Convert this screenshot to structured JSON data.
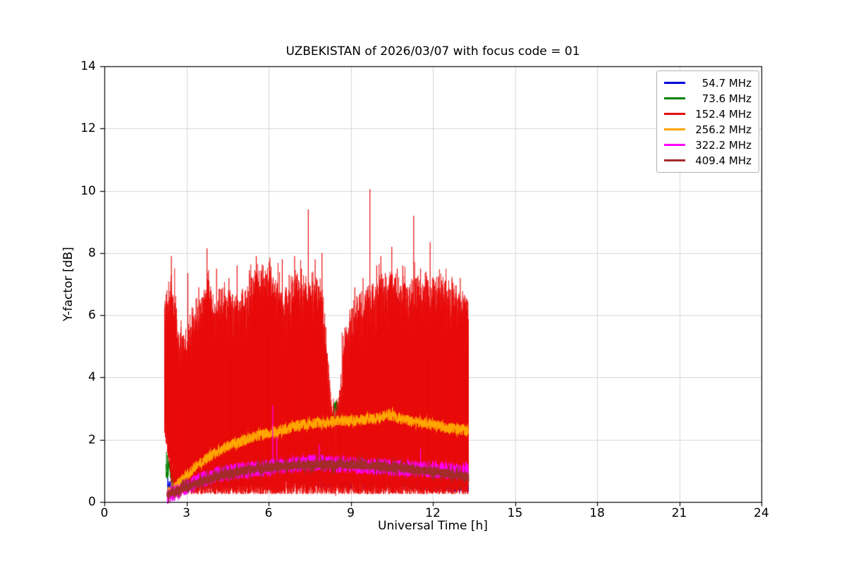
{
  "chart_data": {
    "type": "line",
    "title": "UZBEKISTAN of 2026/03/07 with focus code = 01",
    "xlabel": "Universal Time [h]",
    "ylabel": "Y-factor [dB]",
    "xlim": [
      0,
      24
    ],
    "ylim": [
      0,
      14
    ],
    "x_ticks": [
      0,
      3,
      6,
      9,
      12,
      15,
      18,
      21,
      24
    ],
    "y_ticks": [
      0,
      2,
      4,
      6,
      8,
      10,
      12,
      14
    ],
    "grid": true,
    "grid_color": "#d6d6d6",
    "legend_position": "upper right",
    "series": [
      {
        "name": "54.7 MHz",
        "color": "#0000dd",
        "render": "line",
        "x_start": 2.3,
        "x_end": 13.3,
        "width": 1.2,
        "noise": 0.3,
        "x_step": 0.008,
        "mean": [
          [
            2.3,
            0.5
          ],
          [
            3.0,
            0.6
          ],
          [
            4.0,
            0.7
          ],
          [
            5.0,
            0.75
          ],
          [
            6.0,
            0.8
          ],
          [
            6.5,
            0.85
          ],
          [
            7.0,
            0.85
          ],
          [
            8.0,
            0.75
          ],
          [
            9.0,
            0.7
          ],
          [
            10.0,
            0.7
          ],
          [
            11.0,
            0.68
          ],
          [
            12.0,
            0.65
          ],
          [
            13.3,
            0.6
          ]
        ]
      },
      {
        "name": "73.6 MHz",
        "color": "#008000",
        "render": "line",
        "x_start": 2.25,
        "x_end": 13.3,
        "width": 1.2,
        "noise": 0.3,
        "x_step": 0.008,
        "mean": [
          [
            2.25,
            1.0
          ],
          [
            2.35,
            1.1
          ],
          [
            2.5,
            0.8
          ],
          [
            3.0,
            0.7
          ],
          [
            4.0,
            0.75
          ],
          [
            5.0,
            0.8
          ],
          [
            6.0,
            0.85
          ],
          [
            7.0,
            0.9
          ],
          [
            8.0,
            0.95
          ],
          [
            8.3,
            2.6
          ],
          [
            8.45,
            3.15
          ],
          [
            8.6,
            2.9
          ],
          [
            8.75,
            1.2
          ],
          [
            9.0,
            0.9
          ],
          [
            10.0,
            0.8
          ],
          [
            11.0,
            0.75
          ],
          [
            12.0,
            0.7
          ],
          [
            13.3,
            0.7
          ]
        ],
        "spikes": [
          [
            2.27,
            1.6
          ],
          [
            2.31,
            1.5
          ],
          [
            2.35,
            1.3
          ]
        ]
      },
      {
        "name": "152.4 MHz",
        "color": "#e80c0c",
        "render": "fill",
        "x_start": 2.2,
        "x_end": 13.3,
        "spike_base": 0.6,
        "top": [
          [
            2.2,
            6.2
          ],
          [
            2.45,
            7.0
          ],
          [
            2.7,
            5.6
          ],
          [
            3.0,
            5.1
          ],
          [
            3.2,
            5.9
          ],
          [
            3.5,
            6.3
          ],
          [
            3.8,
            7.0
          ],
          [
            4.0,
            6.2
          ],
          [
            4.3,
            6.5
          ],
          [
            4.6,
            6.8
          ],
          [
            4.9,
            6.2
          ],
          [
            5.2,
            6.6
          ],
          [
            5.5,
            7.0
          ],
          [
            5.8,
            7.2
          ],
          [
            6.1,
            7.3
          ],
          [
            6.4,
            6.7
          ],
          [
            6.7,
            6.5
          ],
          [
            7.0,
            7.1
          ],
          [
            7.3,
            6.9
          ],
          [
            7.6,
            7.1
          ],
          [
            7.9,
            6.8
          ],
          [
            8.1,
            5.2
          ],
          [
            8.3,
            3.1
          ],
          [
            8.45,
            2.9
          ],
          [
            8.6,
            3.4
          ],
          [
            8.8,
            5.4
          ],
          [
            9.0,
            5.9
          ],
          [
            9.3,
            6.3
          ],
          [
            9.6,
            6.5
          ],
          [
            9.9,
            6.8
          ],
          [
            10.2,
            7.0
          ],
          [
            10.5,
            7.1
          ],
          [
            10.8,
            6.9
          ],
          [
            11.1,
            6.6
          ],
          [
            11.4,
            6.9
          ],
          [
            11.7,
            7.0
          ],
          [
            12.0,
            6.9
          ],
          [
            12.3,
            7.0
          ],
          [
            12.6,
            6.6
          ],
          [
            12.9,
            6.5
          ],
          [
            13.1,
            6.4
          ],
          [
            13.3,
            6.3
          ]
        ],
        "bottom": [
          [
            2.2,
            2.2
          ],
          [
            2.3,
            1.6
          ],
          [
            2.45,
            0.7
          ],
          [
            2.6,
            0.35
          ],
          [
            3.0,
            0.25
          ],
          [
            13.3,
            0.25
          ]
        ],
        "spikes": [
          [
            2.45,
            7.9
          ],
          [
            3.05,
            7.35
          ],
          [
            3.45,
            6.9
          ],
          [
            3.75,
            8.15
          ],
          [
            4.1,
            7.5
          ],
          [
            4.55,
            7.2
          ],
          [
            4.85,
            7.6
          ],
          [
            5.3,
            7.45
          ],
          [
            5.55,
            7.9
          ],
          [
            5.8,
            7.6
          ],
          [
            6.05,
            7.85
          ],
          [
            6.5,
            7.8
          ],
          [
            6.75,
            7.3
          ],
          [
            6.95,
            7.9
          ],
          [
            7.2,
            7.5
          ],
          [
            7.45,
            9.4
          ],
          [
            7.7,
            7.8
          ],
          [
            7.95,
            8.0
          ],
          [
            9.15,
            6.9
          ],
          [
            9.45,
            7.2
          ],
          [
            9.7,
            10.05
          ],
          [
            9.95,
            7.6
          ],
          [
            10.1,
            7.9
          ],
          [
            10.5,
            8.2
          ],
          [
            10.7,
            7.5
          ],
          [
            10.9,
            7.6
          ],
          [
            11.3,
            9.2
          ],
          [
            11.55,
            7.5
          ],
          [
            11.75,
            7.4
          ],
          [
            11.9,
            8.35
          ],
          [
            12.2,
            7.25
          ],
          [
            12.45,
            7.1
          ],
          [
            12.7,
            7.15
          ],
          [
            13.0,
            7.2
          ]
        ]
      },
      {
        "name": "256.2 MHz",
        "color": "#ffa500",
        "render": "line",
        "x_start": 2.3,
        "x_end": 13.3,
        "width": 1.3,
        "noise": 0.18,
        "x_step": 0.006,
        "mean": [
          [
            2.3,
            0.3
          ],
          [
            2.6,
            0.5
          ],
          [
            3.0,
            0.85
          ],
          [
            3.5,
            1.25
          ],
          [
            4.0,
            1.55
          ],
          [
            4.5,
            1.8
          ],
          [
            5.0,
            1.95
          ],
          [
            5.5,
            2.1
          ],
          [
            6.0,
            2.2
          ],
          [
            6.5,
            2.3
          ],
          [
            7.0,
            2.45
          ],
          [
            7.5,
            2.5
          ],
          [
            8.0,
            2.55
          ],
          [
            8.5,
            2.6
          ],
          [
            9.0,
            2.6
          ],
          [
            9.5,
            2.65
          ],
          [
            10.0,
            2.7
          ],
          [
            10.4,
            2.8
          ],
          [
            10.8,
            2.7
          ],
          [
            11.2,
            2.6
          ],
          [
            11.6,
            2.55
          ],
          [
            12.0,
            2.5
          ],
          [
            12.4,
            2.4
          ],
          [
            12.8,
            2.35
          ],
          [
            13.3,
            2.3
          ]
        ]
      },
      {
        "name": "322.2 MHz",
        "color": "#ff00ff",
        "render": "line",
        "x_start": 2.3,
        "x_end": 13.3,
        "width": 1.2,
        "noise": 0.27,
        "x_step": 0.006,
        "mean": [
          [
            2.3,
            0.2
          ],
          [
            2.7,
            0.35
          ],
          [
            3.0,
            0.5
          ],
          [
            3.5,
            0.7
          ],
          [
            4.0,
            0.85
          ],
          [
            4.5,
            0.95
          ],
          [
            5.0,
            1.0
          ],
          [
            5.5,
            1.05
          ],
          [
            6.0,
            1.1
          ],
          [
            6.5,
            1.15
          ],
          [
            7.0,
            1.2
          ],
          [
            7.5,
            1.25
          ],
          [
            8.0,
            1.25
          ],
          [
            8.5,
            1.2
          ],
          [
            9.0,
            1.2
          ],
          [
            9.5,
            1.15
          ],
          [
            10.0,
            1.15
          ],
          [
            10.5,
            1.1
          ],
          [
            11.0,
            1.1
          ],
          [
            11.5,
            1.05
          ],
          [
            12.0,
            1.05
          ],
          [
            12.5,
            1.0
          ],
          [
            13.0,
            1.0
          ],
          [
            13.3,
            1.0
          ]
        ],
        "spikes": [
          [
            6.15,
            3.1
          ],
          [
            6.3,
            2.1
          ],
          [
            7.85,
            1.85
          ],
          [
            11.55,
            1.7
          ]
        ]
      },
      {
        "name": "409.4 MHz",
        "color": "#a52a2a",
        "render": "line",
        "x_start": 2.3,
        "x_end": 13.3,
        "width": 2.4,
        "noise": 0.14,
        "x_step": 0.006,
        "mean": [
          [
            2.3,
            0.25
          ],
          [
            2.7,
            0.38
          ],
          [
            3.0,
            0.48
          ],
          [
            3.5,
            0.62
          ],
          [
            4.0,
            0.78
          ],
          [
            4.5,
            0.9
          ],
          [
            5.0,
            1.0
          ],
          [
            5.5,
            1.05
          ],
          [
            6.0,
            1.1
          ],
          [
            6.5,
            1.15
          ],
          [
            7.0,
            1.18
          ],
          [
            7.5,
            1.2
          ],
          [
            8.0,
            1.2
          ],
          [
            8.5,
            1.2
          ],
          [
            9.0,
            1.2
          ],
          [
            9.5,
            1.18
          ],
          [
            10.0,
            1.15
          ],
          [
            10.5,
            1.12
          ],
          [
            11.0,
            1.08
          ],
          [
            11.5,
            1.02
          ],
          [
            12.0,
            0.98
          ],
          [
            12.5,
            0.92
          ],
          [
            13.0,
            0.85
          ],
          [
            13.3,
            0.8
          ]
        ]
      }
    ]
  }
}
